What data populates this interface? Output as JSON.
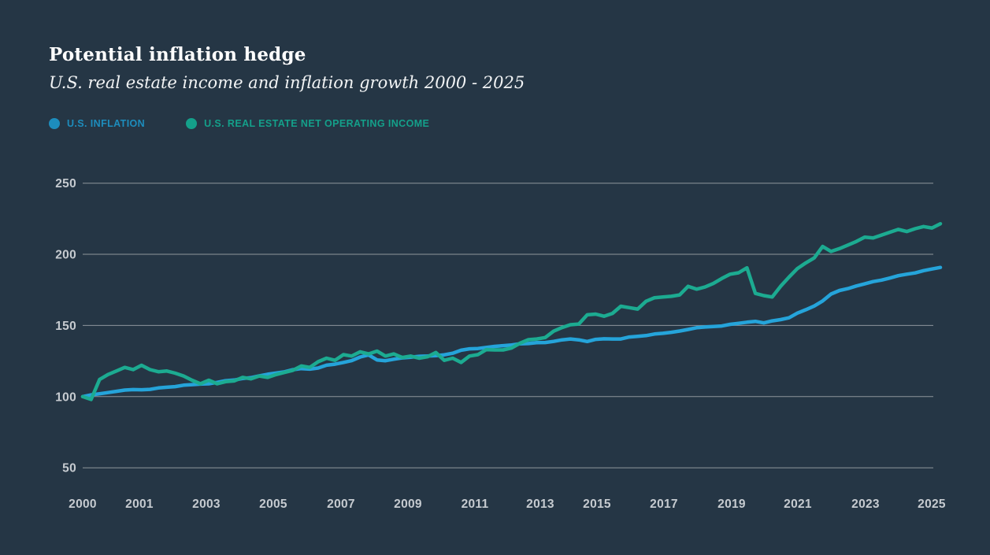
{
  "header": {
    "title": "Potential inflation hedge",
    "subtitle": "U.S. real estate income and inflation growth 2000 - 2025"
  },
  "legend": {
    "items": [
      {
        "label": "U.S. INFLATION",
        "color": "#1d8dbd",
        "icon": "circle-dot"
      },
      {
        "label": "U.S. REAL ESTATE NET OPERATING INCOME",
        "color": "#14a08a",
        "icon": "circle-dot"
      }
    ]
  },
  "chart_data": {
    "type": "line",
    "title": "Potential inflation hedge",
    "subtitle": "U.S. real estate income and inflation growth 2000 - 2025",
    "x_frequency": "quarterly",
    "x_start_year": 2000,
    "x_end_year": 2025.5,
    "x_tick_labels": [
      "2000",
      "2001",
      "2003",
      "2005",
      "2007",
      "2009",
      "2011",
      "2013",
      "2015",
      "2017",
      "2019",
      "2021",
      "2023",
      "2025"
    ],
    "y_tick_labels": [
      "250",
      "200",
      "150",
      "100",
      "50"
    ],
    "y_ticks": [
      250,
      200,
      150,
      100,
      50
    ],
    "ylim": [
      50,
      250
    ],
    "index_base": "2000 = 100",
    "grid": "horizontal-only",
    "legend_position": "top-left",
    "series": [
      {
        "name": "U.S. INFLATION",
        "color": "#25a4da",
        "values": [
          100,
          101.2,
          102,
          102.8,
          103.7,
          104.6,
          104.9,
          104.8,
          105.1,
          106.1,
          106.6,
          107,
          108,
          108.4,
          108.8,
          109,
          110,
          111.2,
          111.6,
          112.7,
          113.3,
          114.6,
          115.7,
          116.6,
          117.4,
          118.9,
          119.7,
          119.3,
          120.1,
          122.1,
          122.8,
          124,
          125.3,
          127.8,
          129.3,
          125.8,
          125.2,
          126.3,
          127.2,
          127.7,
          128.3,
          128.5,
          128.8,
          129.4,
          130.5,
          132.6,
          133.6,
          133.8,
          134.5,
          135.3,
          135.8,
          136.3,
          137.1,
          137.3,
          137.9,
          138,
          138.8,
          139.9,
          140.5,
          139.9,
          138.7,
          140.2,
          140.6,
          140.5,
          140.5,
          141.9,
          142.4,
          142.9,
          144,
          144.5,
          145.2,
          146.1,
          147.2,
          148.4,
          148.9,
          149.3,
          149.6,
          150.8,
          151.5,
          152.3,
          152.9,
          151.8,
          153.2,
          154.1,
          155.4,
          158.7,
          161.1,
          163.7,
          167.2,
          172.1,
          174.6,
          175.9,
          177.7,
          179.2,
          180.8,
          181.9,
          183.3,
          185,
          186,
          186.9,
          188.5,
          189.7,
          190.8
        ]
      },
      {
        "name": "U.S. REAL ESTATE NET OPERATING INCOME",
        "color": "#1cab91",
        "values": [
          100,
          98,
          112,
          115.5,
          118,
          120.5,
          119,
          122,
          119,
          117.5,
          118,
          116.5,
          114.5,
          111.5,
          109,
          111.5,
          109,
          110.5,
          111,
          113.5,
          112.5,
          114.5,
          113.5,
          115.5,
          117,
          118.5,
          121.5,
          120.5,
          124.5,
          127,
          125.5,
          129.5,
          128.5,
          131.5,
          130,
          132,
          128.5,
          130,
          127.5,
          128.5,
          127,
          128,
          131,
          125.5,
          127,
          124,
          128.5,
          129.5,
          133,
          132.8,
          132.8,
          134.2,
          137.5,
          140,
          140.5,
          141.5,
          146,
          148.5,
          150.5,
          151,
          157.5,
          158,
          156.5,
          158.5,
          163.5,
          162.5,
          161.5,
          167,
          169.5,
          170,
          170.5,
          171.5,
          177.5,
          175.5,
          177,
          179.5,
          183,
          186,
          187,
          190.5,
          172.5,
          171,
          170,
          177.5,
          184,
          190,
          194,
          197.5,
          205.5,
          202,
          204,
          206.5,
          209,
          212,
          211.5,
          213.5,
          215.5,
          217.5,
          216,
          218,
          219.5,
          218.5,
          221.5
        ]
      }
    ]
  }
}
